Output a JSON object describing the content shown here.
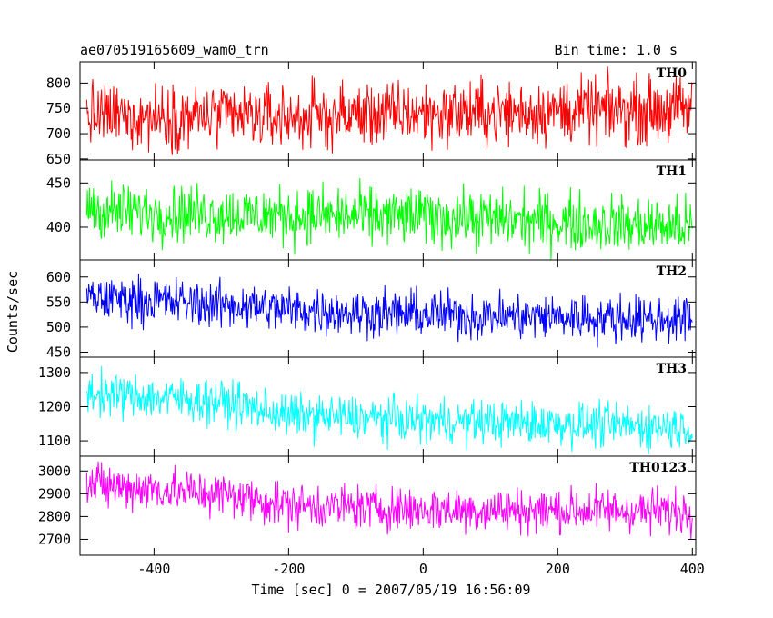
{
  "header": {
    "left_title": "ae070519165609_wam0_trn",
    "right_title": "Bin time: 1.0 s"
  },
  "chart_data": {
    "type": "line",
    "xlabel": "Time [sec] 0 = 2007/05/19 16:56:09",
    "ylabel": "Counts/sec",
    "xlim": [
      -510,
      405
    ],
    "xticks": [
      -400,
      -200,
      0,
      200,
      400
    ],
    "grid": false,
    "panels": [
      {
        "name": "TH0",
        "color": "#ff0000",
        "ylim": [
          648,
          842
        ],
        "yticks": [
          650,
          700,
          750,
          800
        ],
        "trend": [
          [
            -500,
            735
          ],
          [
            -200,
            733
          ],
          [
            0,
            740
          ],
          [
            400,
            748
          ]
        ],
        "noise": 55,
        "clip": [
          648,
          842
        ]
      },
      {
        "name": "TH1",
        "color": "#00ff00",
        "ylim": [
          363,
          476
        ],
        "yticks": [
          400,
          450
        ],
        "trend": [
          [
            -500,
            428
          ],
          [
            -480,
            418
          ],
          [
            -200,
            413
          ],
          [
            0,
            412
          ],
          [
            400,
            400
          ]
        ],
        "noise": 28,
        "clip": [
          363,
          470
        ]
      },
      {
        "name": "TH2",
        "color": "#0000ff",
        "ylim": [
          440,
          634
        ],
        "yticks": [
          450,
          500,
          550,
          600
        ],
        "trend": [
          [
            -500,
            560
          ],
          [
            -300,
            545
          ],
          [
            -200,
            535
          ],
          [
            0,
            525
          ],
          [
            400,
            515
          ]
        ],
        "noise": 40,
        "clip": [
          443,
          632
        ]
      },
      {
        "name": "TH3",
        "color": "#00ffff",
        "ylim": [
          1055,
          1345
        ],
        "yticks": [
          1100,
          1200,
          1300
        ],
        "trend": [
          [
            -500,
            1240
          ],
          [
            -300,
            1215
          ],
          [
            -200,
            1175
          ],
          [
            0,
            1160
          ],
          [
            400,
            1140
          ]
        ],
        "noise": 55,
        "clip": [
          1060,
          1342
        ]
      },
      {
        "name": "TH0123",
        "color": "#ff00ff",
        "ylim": [
          2630,
          3065
        ],
        "yticks": [
          2700,
          2800,
          2900,
          3000
        ],
        "trend": [
          [
            -500,
            2940
          ],
          [
            -300,
            2900
          ],
          [
            -200,
            2850
          ],
          [
            0,
            2830
          ],
          [
            400,
            2825
          ]
        ],
        "noise": 85,
        "clip": [
          2635,
          3065
        ]
      }
    ]
  }
}
